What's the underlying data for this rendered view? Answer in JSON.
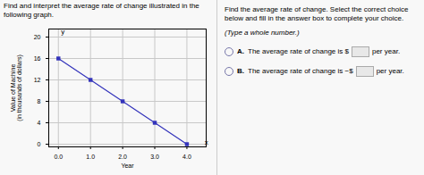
{
  "chart_data": {
    "type": "line",
    "title": "Find and interpret the average rate of change illustrated in the following graph.",
    "xlabel": "Year",
    "ylabel": "Value of Machine\n(in thousands of dollars)",
    "x": [
      0,
      1,
      2,
      3,
      4
    ],
    "values": [
      16,
      12,
      8,
      4,
      0
    ],
    "color": "#3333bb",
    "marker": "square",
    "xlim": [
      -0.3,
      4.6
    ],
    "ylim": [
      -0.5,
      21.5
    ],
    "xticks": [
      0,
      1,
      2,
      3,
      4
    ],
    "yticks": [
      0,
      4,
      8,
      12,
      16,
      20
    ],
    "grid": true,
    "annotations": [
      {
        "text": "y",
        "x": 0.08,
        "y": 21.0
      },
      {
        "text": "x",
        "x": 4.55,
        "y": 0.4
      },
      {
        "text": "Find the average rate of change. Select the correct choice below and fill in the answer box to complete your choice."
      },
      {
        "text": "(Type a whole number.)"
      },
      {
        "choice": "A.",
        "text": "The average rate of change is $",
        "suffix": "per year."
      },
      {
        "choice": "B.",
        "text": "The average rate of change is −$",
        "suffix": "per year."
      }
    ]
  }
}
